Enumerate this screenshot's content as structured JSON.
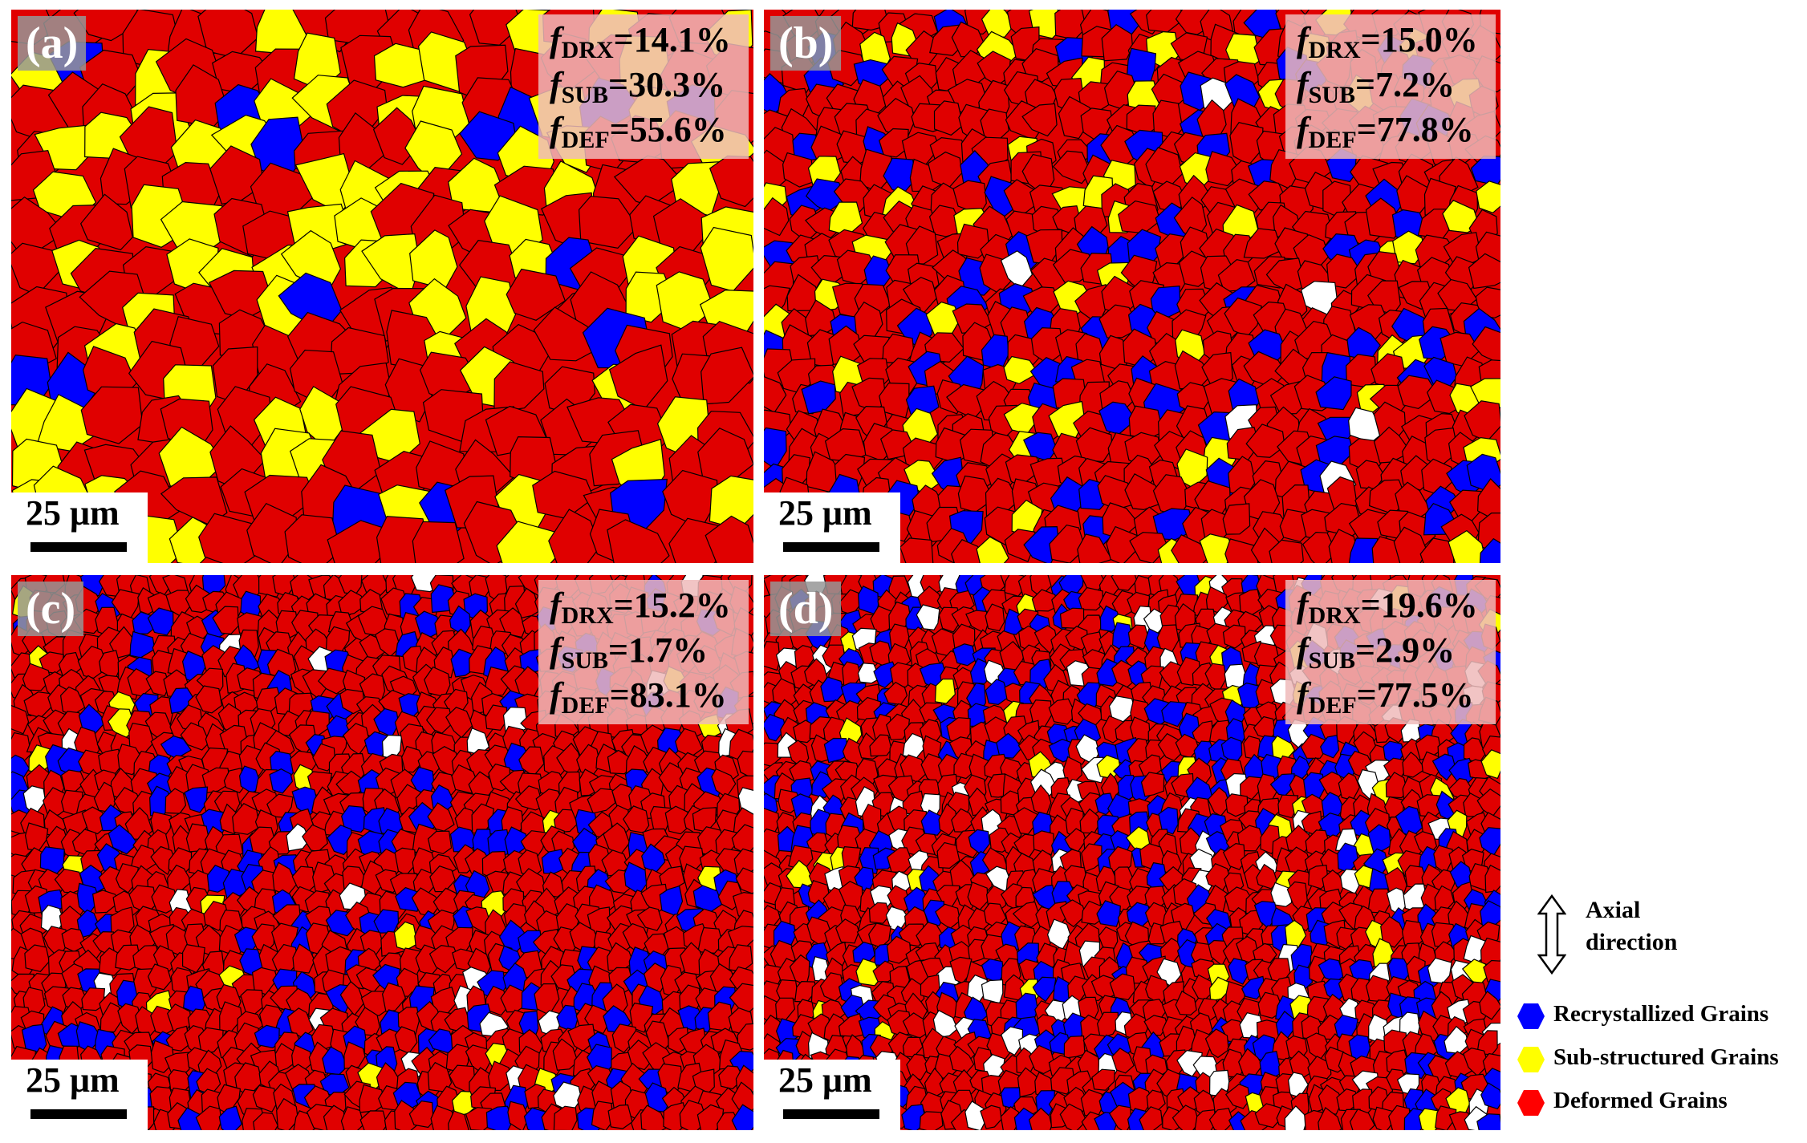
{
  "panels": [
    {
      "id": "a",
      "label": "(a)",
      "f_drx": "=14.1%",
      "f_sub": "=30.3%",
      "f_def": "=55.6%",
      "scale": "25 μm"
    },
    {
      "id": "b",
      "label": "(b)",
      "f_drx": "=15.0%",
      "f_sub": "=7.2%",
      "f_def": "=77.8%",
      "scale": "25 μm"
    },
    {
      "id": "c",
      "label": "(c)",
      "f_drx": "=15.2%",
      "f_sub": "=1.7%",
      "f_def": "=83.1%",
      "scale": "25 μm"
    },
    {
      "id": "d",
      "label": "(d)",
      "f_drx": "=19.6%",
      "f_sub": "=2.9%",
      "f_def": "=77.5%",
      "scale": "25 μm"
    }
  ],
  "symbols": {
    "f": "f",
    "drx": "DRX",
    "sub": "SUB",
    "def": "DEF"
  },
  "legend": {
    "axial_line1": "Axial",
    "axial_line2": "direction",
    "items": [
      {
        "label": "Recrystallized Grains",
        "color": "#0000ff"
      },
      {
        "label": "Sub-structured Grains",
        "color": "#ffff00"
      },
      {
        "label": "Deformed Grains",
        "color": "#ff0000"
      }
    ]
  },
  "colors": {
    "deformed": "#e00000",
    "substructured": "#ffff00",
    "recrystallized": "#0000ff",
    "unindexed": "#ffffff",
    "boundary": "#000000"
  }
}
